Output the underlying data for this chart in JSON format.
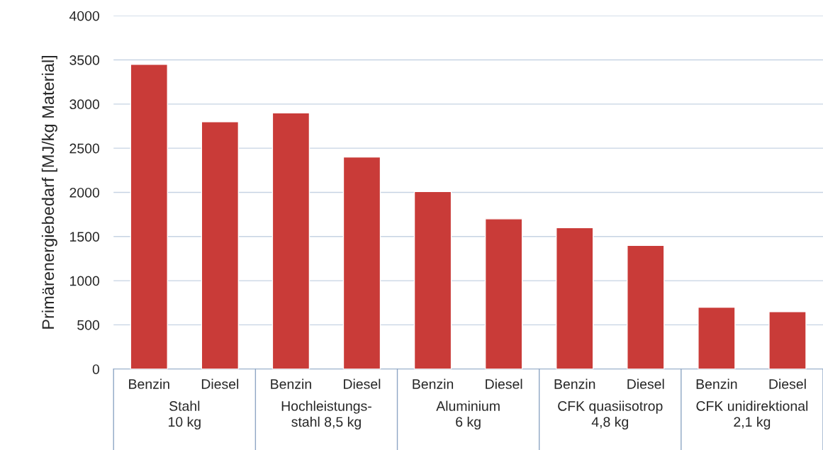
{
  "chart_data": {
    "type": "bar",
    "ylabel": "Primärenergiebedarf [MJ/kg Material]",
    "categories": [
      "Benzin",
      "Diesel",
      "Benzin",
      "Diesel",
      "Benzin",
      "Diesel",
      "Benzin",
      "Diesel",
      "Benzin",
      "Diesel"
    ],
    "values": [
      3450,
      2800,
      2900,
      2400,
      2010,
      1700,
      1600,
      1400,
      700,
      650
    ],
    "color": "#c93b38",
    "ylim": [
      0,
      4000
    ],
    "yticks": [
      0,
      500,
      1000,
      1500,
      2000,
      2500,
      3000,
      3500,
      4000
    ],
    "grid": "y",
    "legend": false,
    "annotations": [
      "Stahl\n10 kg",
      "Hochleistungs-\nstahl 8,5 kg",
      "Aluminium\n6 kg",
      "CFK quasiisotrop\n4,8 kg",
      "CFK unidirektional\n2,1 kg"
    ]
  }
}
